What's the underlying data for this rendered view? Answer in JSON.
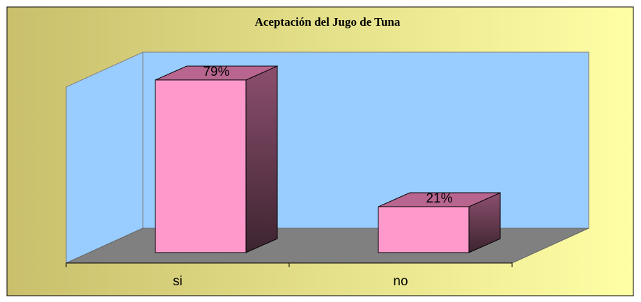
{
  "chart_data": {
    "type": "bar3d",
    "title": "Aceptación del Jugo de Tuna",
    "categories": [
      "si",
      "no"
    ],
    "values": [
      79,
      21
    ],
    "value_labels": [
      "79%",
      "21%"
    ],
    "color": "#ff99cc"
  }
}
